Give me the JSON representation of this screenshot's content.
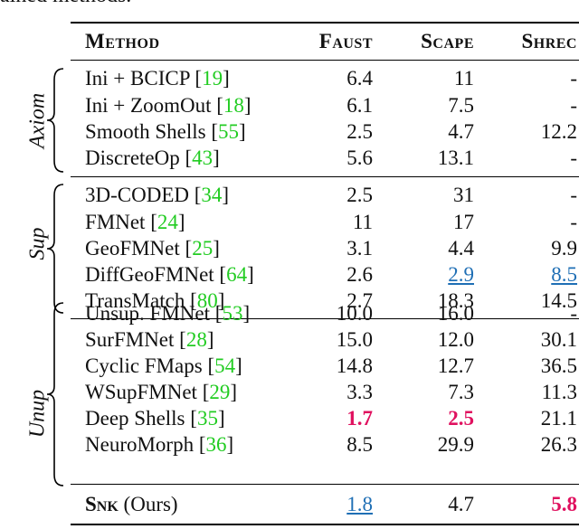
{
  "caption_fragment": "ained methods.",
  "headers": {
    "method": "Method",
    "faust": "Faust",
    "scape": "Scape",
    "shrec": "Shrec"
  },
  "groups": [
    {
      "label": "Axiom",
      "rows": [
        {
          "method": "Ini + BCICP ",
          "ref": "19",
          "faust": "6.4",
          "scape": "11",
          "shrec": "-"
        },
        {
          "method": "Ini + ZoomOut ",
          "ref": "18",
          "faust": "6.1",
          "scape": "7.5",
          "shrec": "-"
        },
        {
          "method": "Smooth Shells ",
          "ref": "55",
          "faust": "2.5",
          "scape": "4.7",
          "shrec": "12.2"
        },
        {
          "method": "DiscreteOp ",
          "ref": "43",
          "faust": "5.6",
          "scape": "13.1",
          "shrec": "-"
        }
      ]
    },
    {
      "label": "Sup",
      "rows": [
        {
          "method": "3D-CODED ",
          "ref": "34",
          "faust": "2.5",
          "scape": "31",
          "shrec": "-"
        },
        {
          "method": "FMNet ",
          "ref": "24",
          "faust": "11",
          "scape": "17",
          "shrec": "-"
        },
        {
          "method": "GeoFMNet ",
          "ref": "25",
          "faust": "3.1",
          "scape": "4.4",
          "shrec": "9.9"
        },
        {
          "method": "DiffGeoFMNet ",
          "ref": "64",
          "faust": "2.6",
          "scape": "2.9",
          "shrec": "8.5"
        },
        {
          "method": "TransMatch ",
          "ref": "80",
          "faust": "2.7",
          "scape": "18.3",
          "shrec": "14.5"
        }
      ]
    },
    {
      "label": "Unup",
      "rows": [
        {
          "method": "Unsup. FMNet ",
          "ref": "53",
          "faust": "10.0",
          "scape": "16.0",
          "shrec": "-"
        },
        {
          "method": "SurFMNet ",
          "ref": "28",
          "faust": "15.0",
          "scape": "12.0",
          "shrec": "30.1"
        },
        {
          "method": "Cyclic FMaps ",
          "ref": "54",
          "faust": "14.8",
          "scape": "12.7",
          "shrec": "36.5"
        },
        {
          "method": "WSupFMNet ",
          "ref": "29",
          "faust": "3.3",
          "scape": "7.3",
          "shrec": "11.3"
        },
        {
          "method": "Deep Shells ",
          "ref": "35",
          "faust": "1.7",
          "scape": "2.5",
          "shrec": "21.1"
        },
        {
          "method": "NeuroMorph ",
          "ref": "36",
          "faust": "8.5",
          "scape": "29.9",
          "shrec": "26.3"
        }
      ]
    }
  ],
  "ours": {
    "method_caps": "Snk",
    "method_rest": " (Ours)",
    "faust": "1.8",
    "scape": "4.7",
    "shrec": "5.8"
  },
  "colors": {
    "best": "#e0115f",
    "second": "#1f6fb5",
    "ref": "#22cc22"
  }
}
